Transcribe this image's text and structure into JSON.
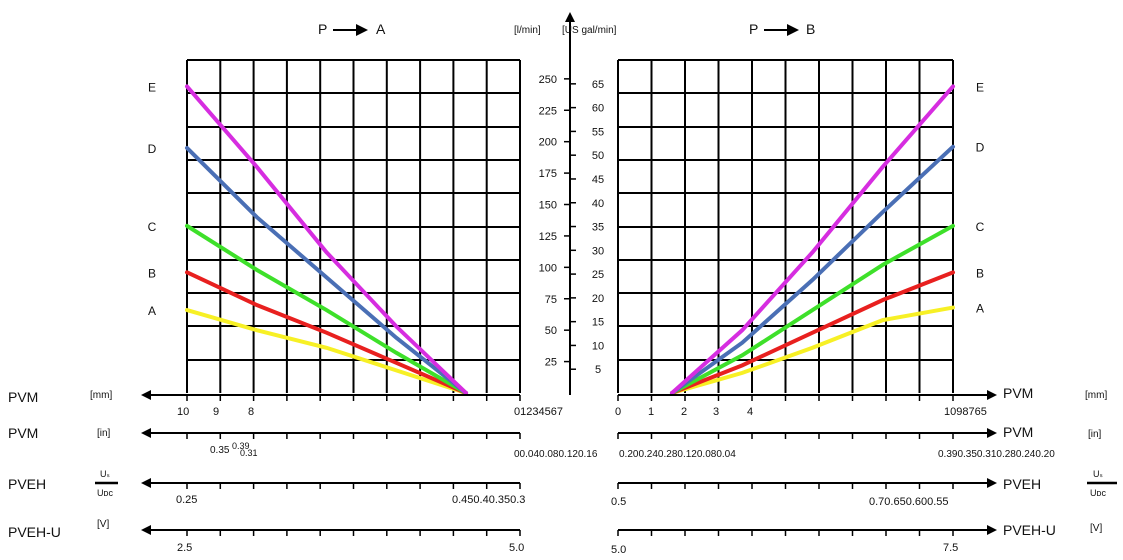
{
  "chart_data": {
    "type": "line",
    "left_panel": {
      "title": "P → A",
      "title_label": "P",
      "title_dest": "A",
      "series": [
        {
          "name": "A",
          "color": "#f7f025",
          "x": [
            10,
            7.5,
            5,
            2.5,
            0
          ],
          "y": [
            66,
            50,
            36,
            18,
            0
          ]
        },
        {
          "name": "B",
          "color": "#e8201f",
          "x": [
            10,
            7.5,
            5,
            2.5,
            0
          ],
          "y": [
            96,
            70,
            48,
            24,
            0
          ]
        },
        {
          "name": "C",
          "color": "#3ee02a",
          "x": [
            10,
            7.5,
            5,
            2.5,
            0
          ],
          "y": [
            133,
            98,
            66,
            32,
            0
          ]
        },
        {
          "name": "D",
          "color": "#4a6fb5",
          "x": [
            10,
            7.5,
            5,
            2.5,
            0
          ],
          "y": [
            195,
            140,
            92,
            44,
            0
          ]
        },
        {
          "name": "E",
          "color": "#d62de0",
          "x": [
            10,
            7.5,
            5,
            2.5,
            0
          ],
          "y": [
            244,
            180,
            112,
            53,
            0
          ]
        }
      ]
    },
    "right_panel": {
      "title": "P → B",
      "title_label": "P",
      "title_dest": "B",
      "series": [
        {
          "name": "A",
          "color": "#f7f025",
          "x": [
            0,
            2.5,
            5,
            7.5,
            10
          ],
          "y": [
            0,
            16,
            36,
            58,
            68
          ]
        },
        {
          "name": "B",
          "color": "#e8201f",
          "x": [
            0,
            2.5,
            5,
            7.5,
            10
          ],
          "y": [
            0,
            22,
            48,
            74,
            96
          ]
        },
        {
          "name": "C",
          "color": "#3ee02a",
          "x": [
            0,
            2.5,
            5,
            7.5,
            10
          ],
          "y": [
            0,
            30,
            66,
            102,
            133
          ]
        },
        {
          "name": "D",
          "color": "#4a6fb5",
          "x": [
            0,
            2.5,
            5,
            7.5,
            10
          ],
          "y": [
            0,
            40,
            90,
            144,
            196
          ]
        },
        {
          "name": "E",
          "color": "#d62de0",
          "x": [
            0,
            2.5,
            5,
            7.5,
            10
          ],
          "y": [
            0,
            50,
            112,
            180,
            244
          ]
        }
      ]
    },
    "y_axis": {
      "title_lmin": "[l/min]",
      "title_gal": "[US gal/min]",
      "lmin_ticks": [
        25,
        50,
        75,
        100,
        125,
        150,
        175,
        200,
        225,
        250
      ],
      "gal_ticks": [
        5,
        10,
        15,
        20,
        25,
        30,
        35,
        40,
        45,
        50,
        55,
        60,
        65
      ],
      "ylim_lmin": [
        0,
        265
      ]
    },
    "scales": [
      {
        "key": "pvm_mm",
        "label": "PVM",
        "unit": "[mm]",
        "left_ticks": [
          "10",
          "9",
          "8"
        ],
        "left_end": "01234567",
        "right_ticks": [
          "0",
          "1",
          "2",
          "3",
          "4"
        ],
        "right_end": "1098765"
      },
      {
        "key": "pvm_in",
        "label": "PVM",
        "unit": "[in]",
        "left_ticks": [
          "0.35",
          "0.39",
          "0.31"
        ],
        "left_end": "00.040.080.120.16",
        "right_mid": "0.200.240.280.120.080.04",
        "right_end": "0.390.350.310.280.240.20"
      },
      {
        "key": "pveh",
        "label": "PVEH",
        "unit_num": "Uₛ",
        "unit_den": "Uᴅᴄ",
        "left_ticks": [
          "0.25"
        ],
        "left_end": "0.450.40.350.3",
        "right_ticks": [
          "0.5"
        ],
        "right_end": "0.70.650.600.55"
      },
      {
        "key": "pveh_u",
        "label": "PVEH-U",
        "unit": "[V]",
        "left_ticks": [
          "2.5"
        ],
        "left_end": "5.0",
        "right_ticks": [
          "5.0"
        ],
        "right_end": "7.5"
      }
    ],
    "grid": true,
    "legend_placement": "series letters at panel outer edges"
  }
}
